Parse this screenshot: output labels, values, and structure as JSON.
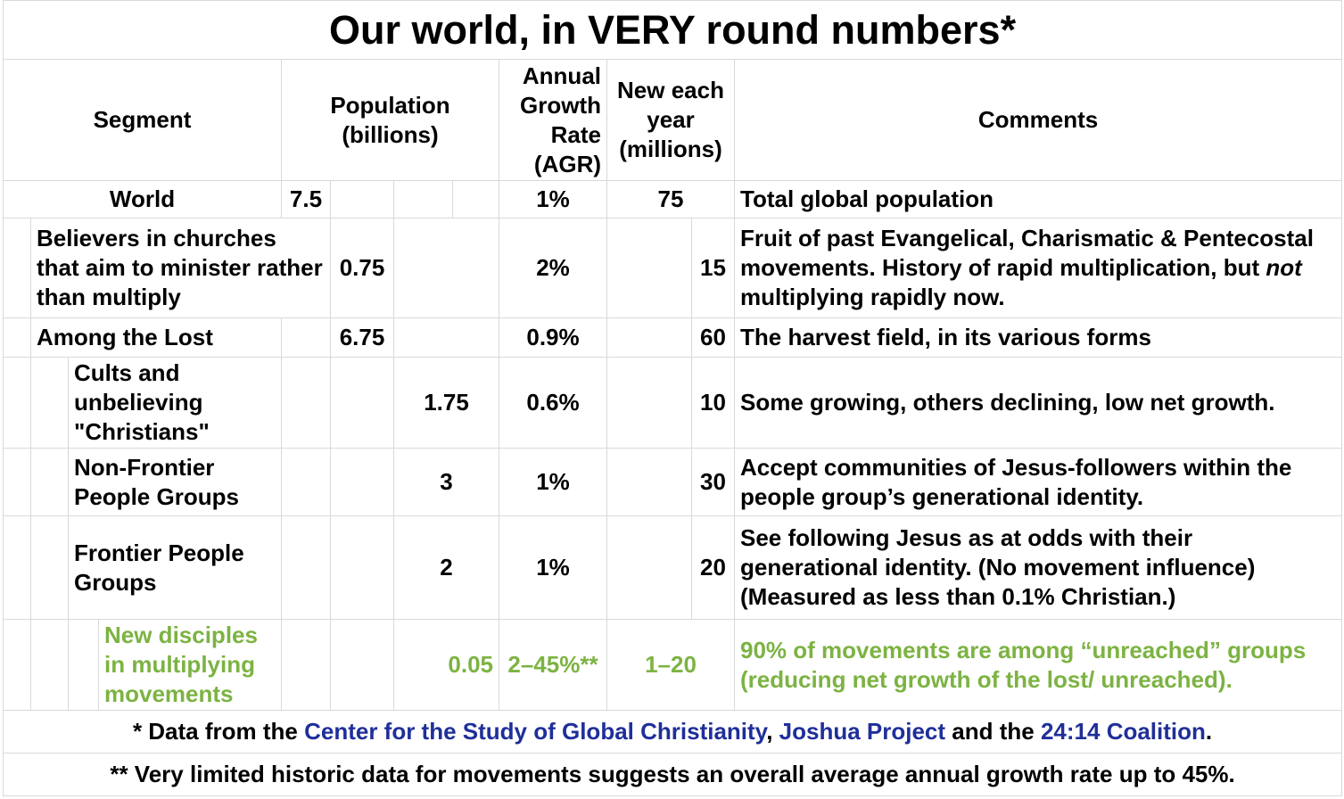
{
  "title": "Our world, in VERY round numbers*",
  "headers": {
    "segment": "Segment",
    "population": "Population (billions)",
    "agr": "Annual Growth Rate (AGR)",
    "new_each_year": "New each year (millions)",
    "comments": "Comments"
  },
  "rows": [
    {
      "segment": "World",
      "population": "7.5",
      "agr": "1%",
      "new": "75",
      "comment": "Total global population"
    },
    {
      "segment": "Believers in churches that aim to minister rather than multiply",
      "population": "0.75",
      "agr": "2%",
      "new": "15",
      "comment_a": "Fruit of past Evangelical, Charismatic & Pentecostal movements. History of rapid multiplication, but ",
      "comment_em": "not",
      "comment_b": " multiplying rapidly now."
    },
    {
      "segment": "Among the Lost",
      "population": "6.75",
      "agr": "0.9%",
      "new": "60",
      "comment": "The harvest field, in its various forms"
    },
    {
      "segment": "Cults and unbelieving \"Christians\"",
      "population": "1.75",
      "agr": "0.6%",
      "new": "10",
      "comment": "Some growing, others declining, low net growth."
    },
    {
      "segment": "Non-Frontier People Groups",
      "population": "3",
      "agr": "1%",
      "new": "30",
      "comment": "Accept communities of Jesus-followers within the people group’s generational identity."
    },
    {
      "segment": "Frontier People Groups",
      "population": "2",
      "agr": "1%",
      "new": "20",
      "comment": "See following Jesus as at odds with their generational identity. (No movement influence) (Measured as less than 0.1% Christian.)"
    },
    {
      "segment": "New disciples in multiplying movements",
      "population": "0.05",
      "agr": "2–45%**",
      "new": "1–20",
      "comment": "90% of movements are among “unreached” groups (reducing net growth of the lost/ unreached)."
    }
  ],
  "footnote1": {
    "prefix": "* Data from the ",
    "link1": "Center for the Study of Global Christianity",
    "sep": ", ",
    "link2": "Joshua Project",
    "mid": " and the ",
    "link3": "24:14 Coalition",
    "suffix": "."
  },
  "footnote2": "** Very limited historic data for movements suggests an overall average annual growth rate up to 45%.",
  "colors": {
    "green": "#7cb342",
    "link_blue": "#1f2f9a",
    "grid": "#d9d9d9"
  }
}
